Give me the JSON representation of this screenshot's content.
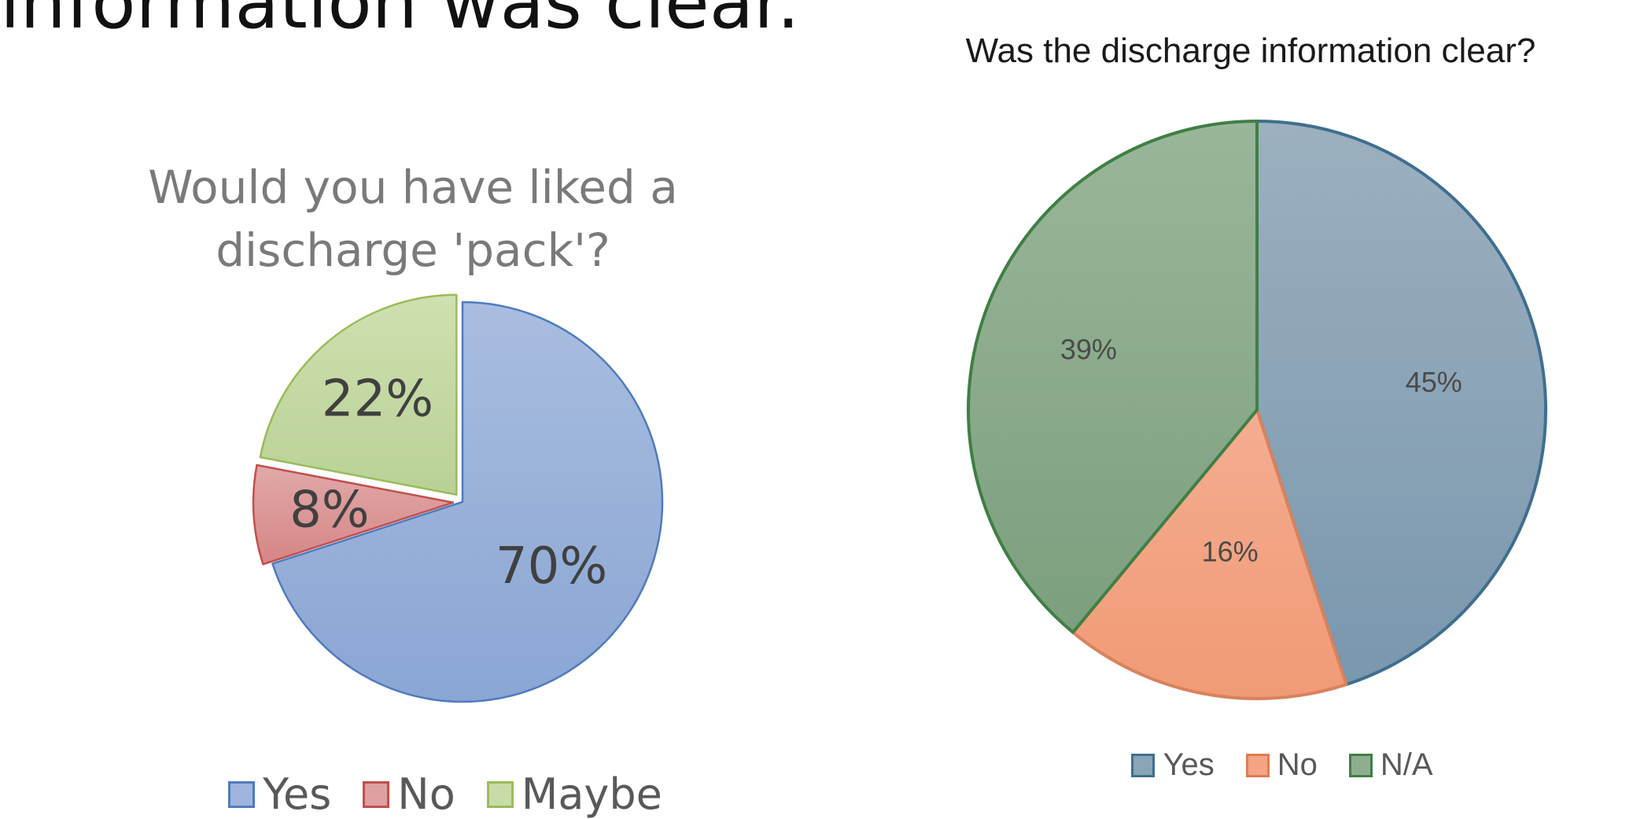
{
  "slide": {
    "heading": "information was clear."
  },
  "chart_data": [
    {
      "type": "pie",
      "title": "Would you have liked a discharge 'pack'?",
      "categories": [
        "Yes",
        "No",
        "Maybe"
      ],
      "values": [
        70,
        8,
        22
      ],
      "labels": [
        "70%",
        "8%",
        "22%"
      ],
      "colors": [
        "#8eaad6",
        "#d98c8c",
        "#bcd49a"
      ],
      "legend": "bottom"
    },
    {
      "type": "pie",
      "title": "Was the discharge information clear?",
      "categories": [
        "Yes",
        "No",
        "N/A"
      ],
      "values": [
        45,
        16,
        39
      ],
      "labels": [
        "45%",
        "16%",
        "39%"
      ],
      "colors": [
        "#839fb4",
        "#f2a17f",
        "#8aaa8a"
      ],
      "legend": "bottom"
    }
  ]
}
